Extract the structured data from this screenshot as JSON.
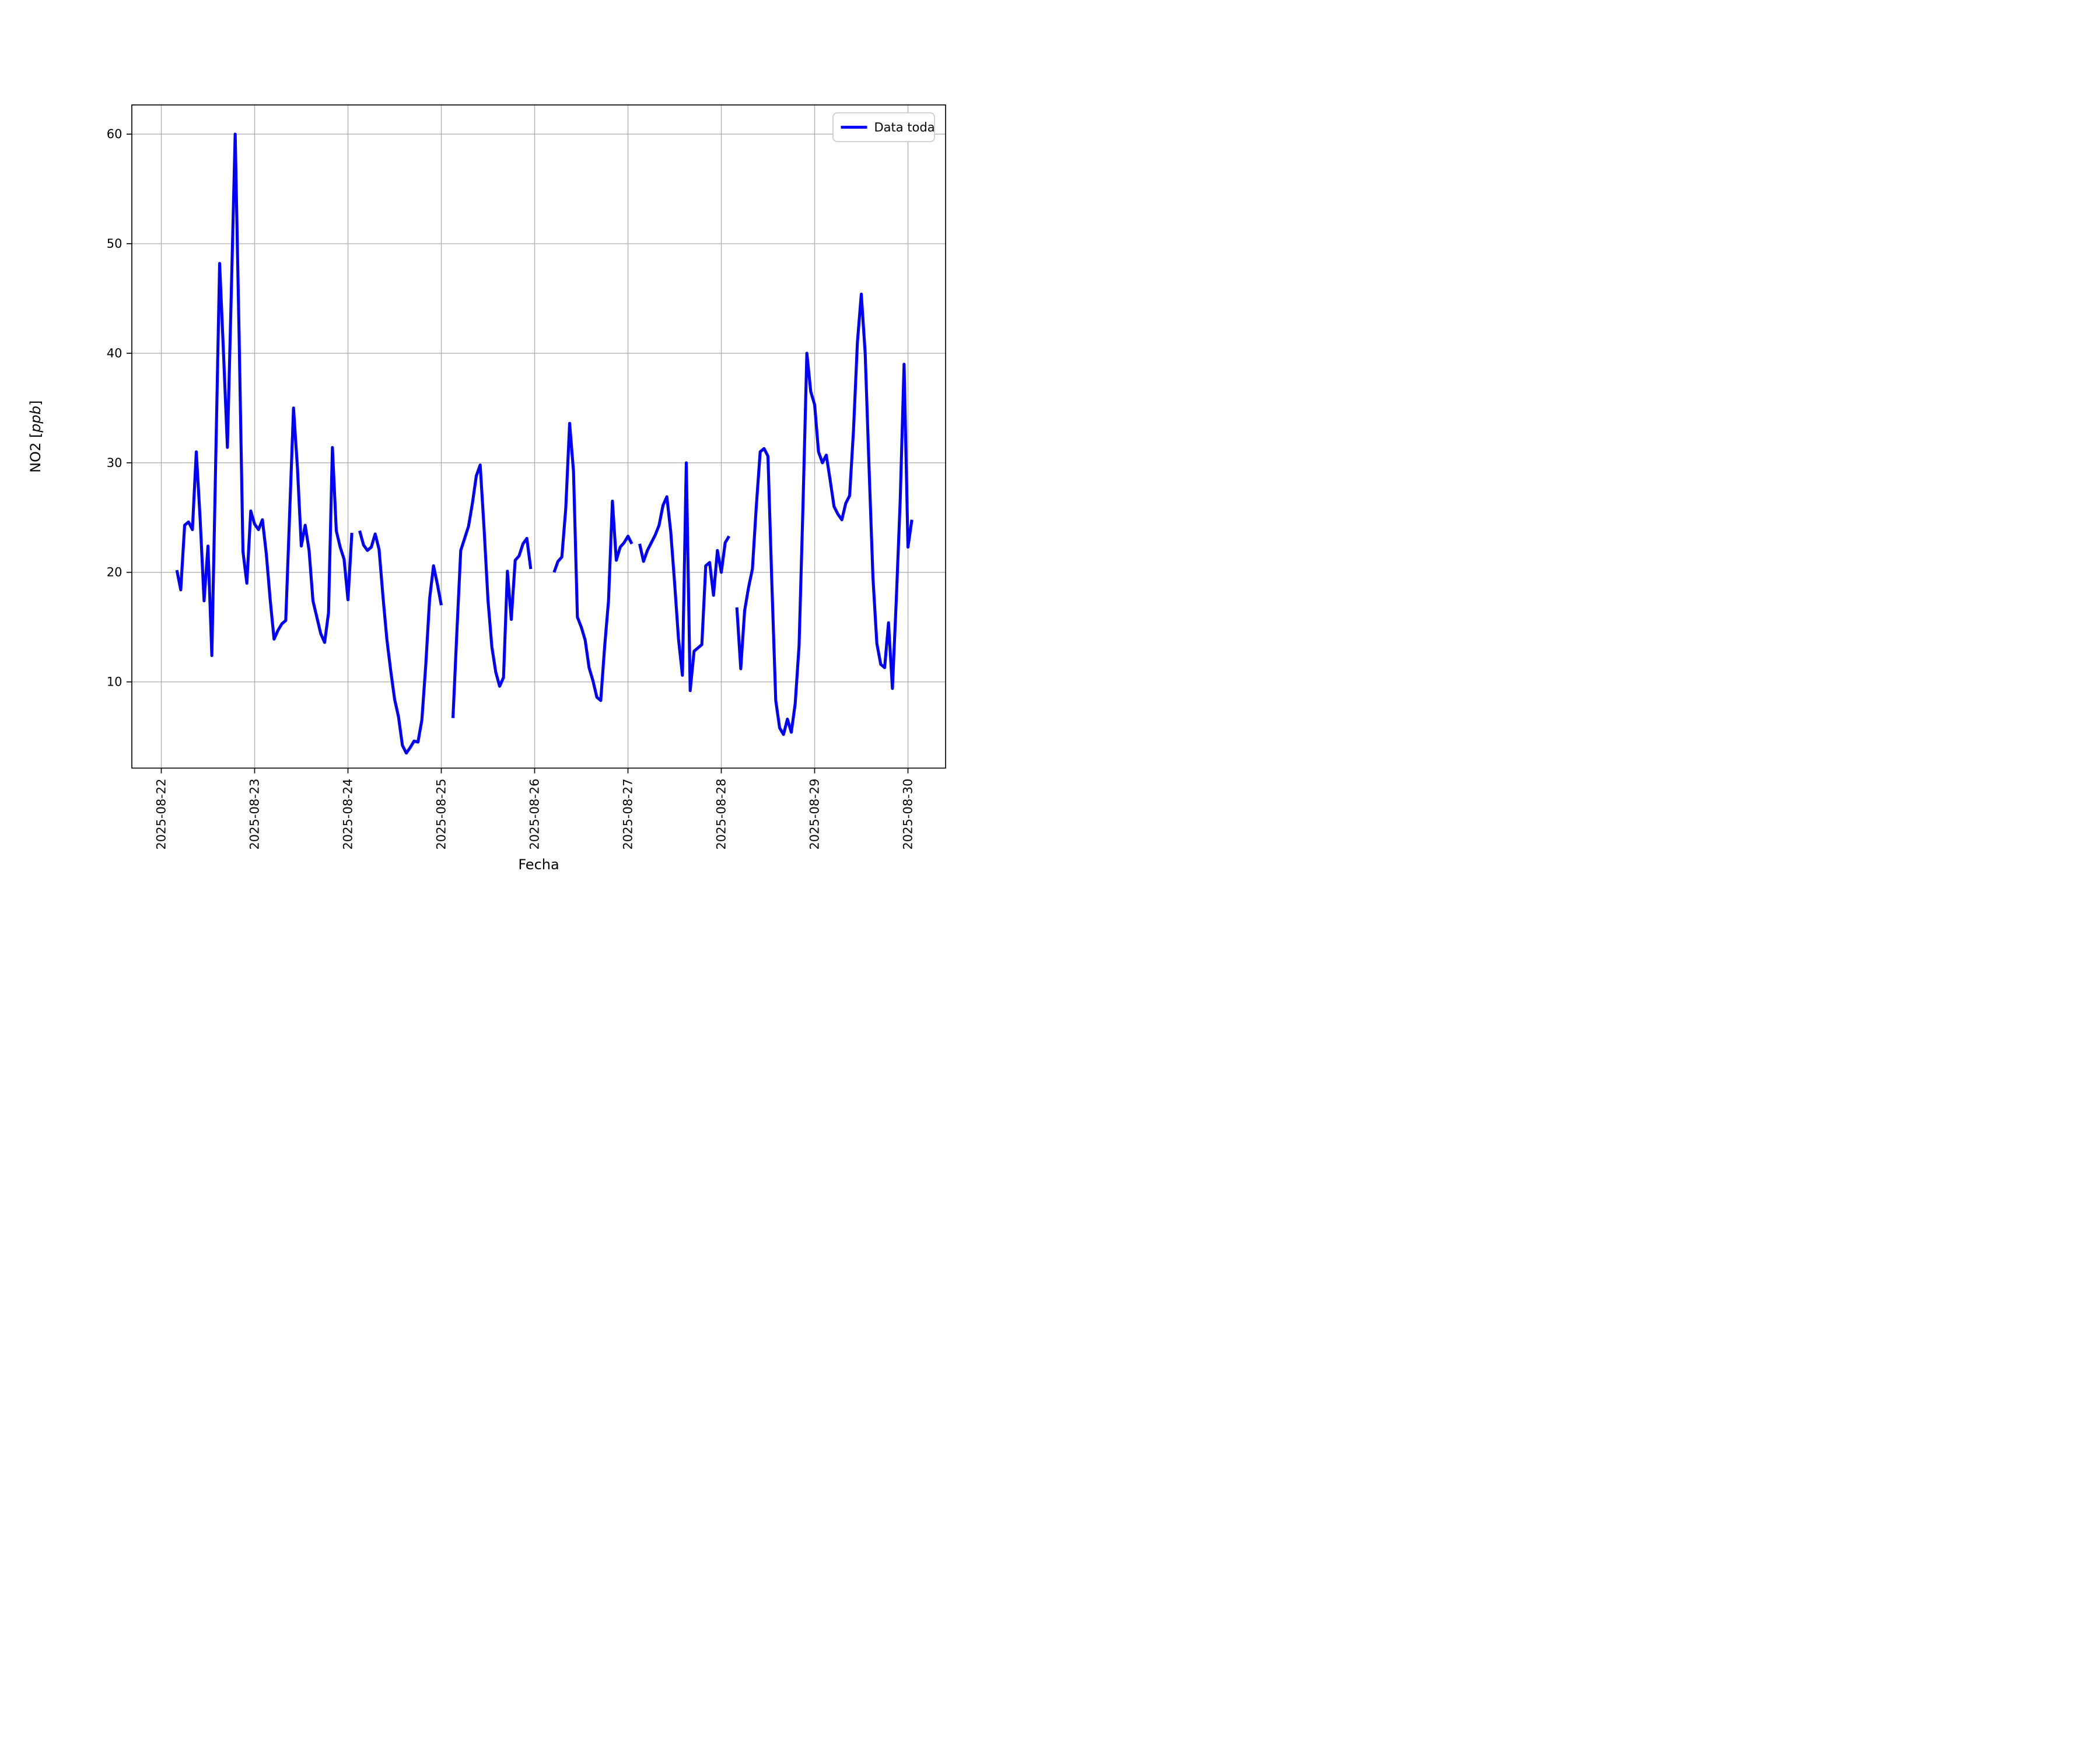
{
  "figure": {
    "background": "#ffffff"
  },
  "chart_data": {
    "type": "line",
    "title": "",
    "xlabel": "Fecha",
    "ylabel": "NO2 [ppb]",
    "ylabel_parts": {
      "prefix": "NO2 [",
      "italic": "ppb",
      "suffix": "]"
    },
    "legend": {
      "label": "Data toda",
      "position": "upper right"
    },
    "line_color": "#0000ff",
    "grid": "on",
    "grid_color": "#b0b0b0",
    "x_tick_labels": [
      "2025-08-22",
      "2025-08-23",
      "2025-08-24",
      "2025-08-25",
      "2025-08-26",
      "2025-08-27",
      "2025-08-28",
      "2025-08-29",
      "2025-08-30"
    ],
    "x_tick_rotation_deg": 90,
    "x_day_tick_hours": [
      0,
      24,
      48,
      72,
      96,
      120,
      144,
      168,
      192
    ],
    "y_ticks": [
      10,
      20,
      30,
      40,
      50,
      60
    ],
    "ylim": [
      0.2,
      62.7
    ],
    "x_unit": "hours since 2025-08-22 00:00 (null = data gap)",
    "series": [
      {
        "name": "Data toda",
        "color": "#0000ff",
        "points": [
          [
            4,
            20.2
          ],
          [
            5,
            18.4
          ],
          [
            6,
            24.3
          ],
          [
            7,
            24.6
          ],
          [
            8,
            23.9
          ],
          [
            9,
            31
          ],
          [
            10,
            24.8
          ],
          [
            11,
            17.4
          ],
          [
            12,
            22.4
          ],
          [
            13,
            12.4
          ],
          [
            14,
            30.3
          ],
          [
            15,
            48.2
          ],
          [
            16,
            40
          ],
          [
            17,
            31.4
          ],
          [
            18,
            45.5
          ],
          [
            19,
            60
          ],
          [
            20,
            41.8
          ],
          [
            21,
            21.9
          ],
          [
            22,
            19
          ],
          [
            23,
            25.6
          ],
          [
            24,
            24.4
          ],
          [
            25,
            23.9
          ],
          [
            26,
            24.8
          ],
          [
            27,
            21.7
          ],
          [
            28,
            17.5
          ],
          [
            29,
            13.9
          ],
          [
            30,
            14.7
          ],
          [
            31,
            15.3
          ],
          [
            32,
            15.6
          ],
          [
            33,
            25.3
          ],
          [
            34,
            35
          ],
          [
            35,
            29.6
          ],
          [
            36,
            22.4
          ],
          [
            37,
            24.3
          ],
          [
            38,
            22
          ],
          [
            39,
            17.4
          ],
          [
            40,
            15.9
          ],
          [
            41,
            14.4
          ],
          [
            42,
            13.6
          ],
          [
            43,
            16.3
          ],
          [
            44,
            31.4
          ],
          [
            45,
            23.8
          ],
          [
            46,
            22.3
          ],
          [
            47,
            21.2
          ],
          [
            48,
            17.5
          ],
          [
            49,
            23.6
          ],
          [
            50,
            null
          ],
          [
            51,
            23.8
          ],
          [
            52,
            22.5
          ],
          [
            53,
            22
          ],
          [
            54,
            22.3
          ],
          [
            55,
            23.5
          ],
          [
            56,
            22.1
          ],
          [
            57,
            17.8
          ],
          [
            58,
            13.9
          ],
          [
            59,
            11
          ],
          [
            60,
            8.4
          ],
          [
            61,
            6.8
          ],
          [
            62,
            4.2
          ],
          [
            63,
            3.5
          ],
          [
            64,
            4
          ],
          [
            65,
            4.6
          ],
          [
            66,
            4.5
          ],
          [
            67,
            6.5
          ],
          [
            68,
            11.5
          ],
          [
            69,
            17.6
          ],
          [
            70,
            20.6
          ],
          [
            71,
            18.9
          ],
          [
            72,
            17
          ],
          [
            73,
            null
          ],
          [
            74,
            null
          ],
          [
            75,
            6.7
          ],
          [
            76,
            14.5
          ],
          [
            77,
            22
          ],
          [
            78,
            23.1
          ],
          [
            79,
            24.2
          ],
          [
            80,
            26.3
          ],
          [
            81,
            28.8
          ],
          [
            82,
            29.8
          ],
          [
            83,
            24
          ],
          [
            84,
            17.5
          ],
          [
            85,
            13.2
          ],
          [
            86,
            10.9
          ],
          [
            87,
            9.6
          ],
          [
            88,
            10.4
          ],
          [
            89,
            20.1
          ],
          [
            90,
            15.7
          ],
          [
            91,
            21.1
          ],
          [
            92,
            21.5
          ],
          [
            93,
            22.6
          ],
          [
            94,
            23.1
          ],
          [
            95,
            20.3
          ],
          [
            96,
            null
          ],
          [
            97,
            null
          ],
          [
            98,
            null
          ],
          [
            99,
            null
          ],
          [
            100,
            null
          ],
          [
            101,
            20
          ],
          [
            102,
            21
          ],
          [
            103,
            21.4
          ],
          [
            104,
            25.8
          ],
          [
            105,
            33.6
          ],
          [
            106,
            29.2
          ],
          [
            107,
            15.9
          ],
          [
            108,
            15
          ],
          [
            109,
            13.8
          ],
          [
            110,
            11.3
          ],
          [
            111,
            10.1
          ],
          [
            112,
            8.6
          ],
          [
            113,
            8.3
          ],
          [
            114,
            13.2
          ],
          [
            115,
            17.4
          ],
          [
            116,
            26.5
          ],
          [
            117,
            21.1
          ],
          [
            118,
            22.3
          ],
          [
            119,
            22.7
          ],
          [
            120,
            23.3
          ],
          [
            121,
            22.6
          ],
          [
            122,
            null
          ],
          [
            123,
            22.6
          ],
          [
            124,
            21
          ],
          [
            125,
            22
          ],
          [
            126,
            22.7
          ],
          [
            127,
            23.4
          ],
          [
            128,
            24.3
          ],
          [
            129,
            26.1
          ],
          [
            130,
            26.9
          ],
          [
            131,
            23.7
          ],
          [
            132,
            19
          ],
          [
            133,
            13.9
          ],
          [
            134,
            10.6
          ],
          [
            135,
            30
          ],
          [
            136,
            9.2
          ],
          [
            137,
            12.8
          ],
          [
            138,
            13.1
          ],
          [
            139,
            13.4
          ],
          [
            140,
            20.6
          ],
          [
            141,
            20.9
          ],
          [
            142,
            17.9
          ],
          [
            143,
            22
          ],
          [
            144,
            20
          ],
          [
            145,
            22.7
          ],
          [
            146,
            23.3
          ],
          [
            147,
            null
          ],
          [
            148,
            16.8
          ],
          [
            149,
            11.2
          ],
          [
            150,
            16.5
          ],
          [
            151,
            18.6
          ],
          [
            152,
            20.3
          ],
          [
            153,
            26
          ],
          [
            154,
            31
          ],
          [
            155,
            31.3
          ],
          [
            156,
            30.6
          ],
          [
            157,
            19
          ],
          [
            158,
            8.3
          ],
          [
            159,
            5.8
          ],
          [
            160,
            5.2
          ],
          [
            161,
            6.6
          ],
          [
            162,
            5.4
          ],
          [
            163,
            8
          ],
          [
            164,
            13.3
          ],
          [
            165,
            26
          ],
          [
            166,
            40
          ],
          [
            167,
            36.5
          ],
          [
            168,
            35.3
          ],
          [
            169,
            31
          ],
          [
            170,
            30
          ],
          [
            171,
            30.7
          ],
          [
            172,
            28.4
          ],
          [
            173,
            26
          ],
          [
            174,
            25.3
          ],
          [
            175,
            24.8
          ],
          [
            176,
            26.3
          ],
          [
            177,
            27
          ],
          [
            178,
            33
          ],
          [
            179,
            41
          ],
          [
            180,
            45.4
          ],
          [
            181,
            40
          ],
          [
            182,
            29.5
          ],
          [
            183,
            19.5
          ],
          [
            184,
            13.5
          ],
          [
            185,
            11.6
          ],
          [
            186,
            11.3
          ],
          [
            187,
            15.4
          ],
          [
            188,
            9.4
          ],
          [
            189,
            17.5
          ],
          [
            190,
            26.5
          ],
          [
            191,
            39
          ],
          [
            192,
            22.3
          ],
          [
            193,
            24.8
          ]
        ]
      }
    ]
  }
}
